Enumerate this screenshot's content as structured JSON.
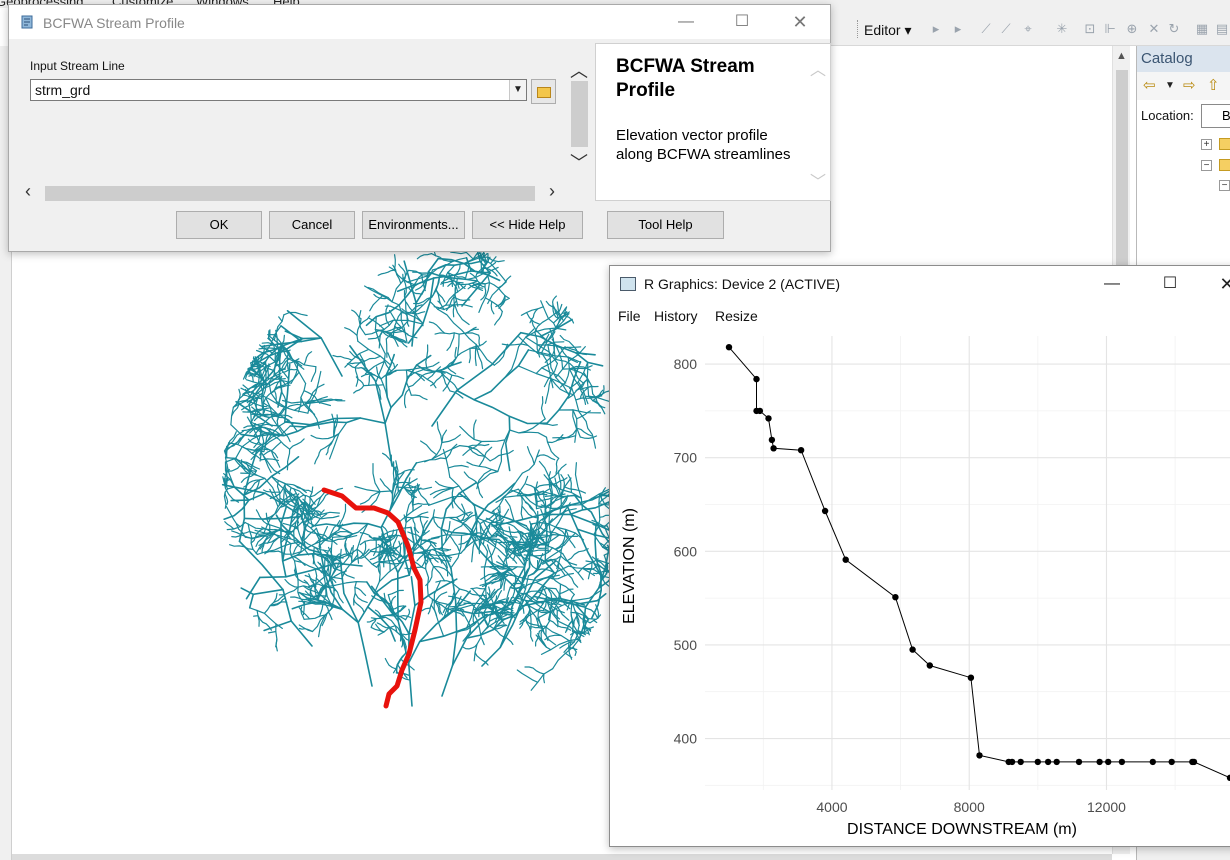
{
  "arcmap": {
    "menu_items": [
      "Geoprocessing",
      "Customize",
      "Windows",
      "Help"
    ],
    "editor_label": "Editor",
    "catalog_title": "Catalog",
    "location_label": "Location:",
    "location_value": "B",
    "map_colors": {
      "streams": "#1a8a9a",
      "selected_stream": "#e8120c"
    }
  },
  "gp_dialog": {
    "title": "BCFWA Stream Profile",
    "input_label": "Input Stream Line",
    "input_value": "strm_grd",
    "help_title": "BCFWA Stream Profile",
    "help_description": "Elevation vector profile along BCFWA streamlines",
    "buttons": {
      "ok": "OK",
      "cancel": "Cancel",
      "environments": "Environments...",
      "hide_help": "<< Hide Help",
      "tool_help": "Tool Help"
    }
  },
  "r_graphics": {
    "title": "R Graphics: Device 2 (ACTIVE)",
    "menu": {
      "file": "File",
      "history": "History",
      "resize": "Resize"
    }
  },
  "chart_data": {
    "type": "line",
    "title": "",
    "xlabel": "DISTANCE DOWNSTREAM (m)",
    "ylabel": "ELEVATION (m)",
    "xlim": [
      300,
      15600
    ],
    "ylim": [
      345,
      830
    ],
    "xticks": [
      4000,
      8000,
      12000
    ],
    "yticks": [
      400,
      500,
      600,
      700,
      800
    ],
    "grid": true,
    "marker": "circle",
    "x": [
      1000,
      1800,
      1800,
      1900,
      2150,
      2250,
      2300,
      3100,
      3800,
      4400,
      5850,
      6350,
      6850,
      8050,
      8300,
      9150,
      9250,
      9500,
      10000,
      10300,
      10550,
      11200,
      11800,
      12050,
      12450,
      13350,
      13900,
      14500,
      14550,
      15600
    ],
    "y": [
      818,
      784,
      750,
      750,
      742,
      719,
      710,
      708,
      643,
      591,
      551,
      495,
      478,
      465,
      382,
      375,
      375,
      375,
      375,
      375,
      375,
      375,
      375,
      375,
      375,
      375,
      375,
      375,
      375,
      358
    ]
  }
}
